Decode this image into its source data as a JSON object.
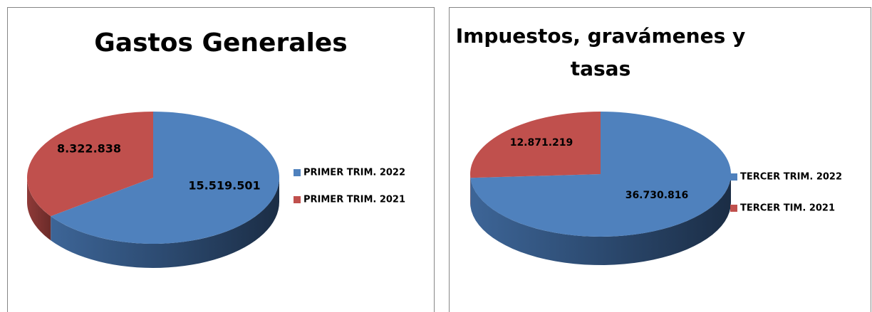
{
  "chart_data": [
    {
      "type": "pie",
      "title": "Gastos Generales",
      "categories": [
        "PRIMER TRIM. 2022",
        "PRIMER TRIM. 2021"
      ],
      "values": [
        15519501,
        8322838
      ],
      "value_labels": [
        "15.519.501",
        "8.322.838"
      ],
      "colors": [
        "#4f81bd",
        "#c0504d"
      ],
      "legend": "right"
    },
    {
      "type": "pie",
      "title": "Impuestos, gravámenes y tasas",
      "categories": [
        "TERCER TRIM. 2022",
        "TERCER TIM. 2021"
      ],
      "values": [
        36730816,
        12871219
      ],
      "value_labels": [
        "36.730.816",
        "12.871.219"
      ],
      "colors": [
        "#4f81bd",
        "#c0504d"
      ],
      "legend": "right"
    }
  ]
}
